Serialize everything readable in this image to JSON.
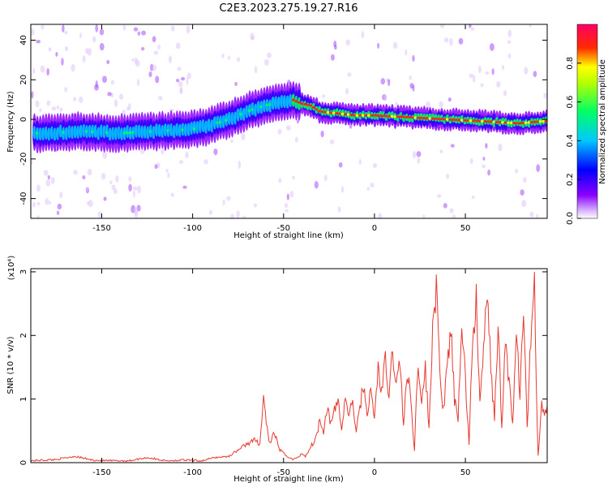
{
  "title": "C2E3.2023.275.19.27.R16",
  "colors": {
    "snr_line": "#e8392f",
    "colormap": [
      "#ffffff",
      "#d9b3ff",
      "#8a00ff",
      "#0000ff",
      "#00c8ff",
      "#00ff66",
      "#ffff00",
      "#ff2a00",
      "#ff0066"
    ]
  },
  "chart_data": [
    {
      "type": "heatmap",
      "name": "spectrogram",
      "xlabel": "Height of straight line (km)",
      "ylabel": "Frequency (Hz)",
      "xlim": [
        -189,
        95
      ],
      "ylim": [
        -50,
        48
      ],
      "x_ticks": [
        -150,
        -100,
        -50,
        0,
        50
      ],
      "y_ticks": [
        -40,
        -20,
        0,
        20,
        40
      ],
      "grid": false,
      "colorbar": {
        "label": "Normalized spectral amplitude",
        "range": [
          0,
          1
        ],
        "ticks": [
          0.0,
          0.2,
          0.4,
          0.6,
          0.8
        ]
      },
      "ridge": {
        "x": [
          -180,
          -160,
          -140,
          -120,
          -100,
          -90,
          -80,
          -70,
          -60,
          -50,
          -45,
          -40,
          -35,
          -30,
          -20,
          -10,
          0,
          20,
          40,
          60,
          80,
          92
        ],
        "frequency": [
          -7,
          -6,
          -7,
          -6,
          -5,
          -3,
          0,
          4,
          7,
          9,
          10,
          8,
          7,
          4,
          3,
          2,
          2,
          1,
          0,
          -1,
          -2,
          -1
        ]
      }
    },
    {
      "type": "line",
      "name": "snr",
      "xlabel": "Height of straight line (km)",
      "ylabel": "SNR (10 * v/v)",
      "multiplier": "(x10⁴)",
      "xlim": [
        -189,
        95
      ],
      "ylim": [
        0,
        3.05
      ],
      "x_ticks": [
        -150,
        -100,
        -50,
        0,
        50
      ],
      "y_ticks": [
        0,
        1,
        2,
        3
      ],
      "grid": false,
      "series": [
        {
          "x": [
            -189,
            -175,
            -165,
            -155,
            -145,
            -135,
            -125,
            -115,
            -105,
            -95,
            -88,
            -80,
            -75,
            -70,
            -66,
            -63,
            -61,
            -58,
            -55,
            -52,
            -48,
            -45,
            -42,
            -40,
            -38,
            -36,
            -34,
            -32,
            -30,
            -28,
            -26,
            -24,
            -22,
            -20,
            -18,
            -16,
            -14,
            -12,
            -10,
            -8,
            -6,
            -4,
            -2,
            0,
            2,
            4,
            6,
            8,
            10,
            12,
            14,
            16,
            18,
            20,
            22,
            24,
            26,
            28,
            30,
            32,
            34,
            36,
            38,
            40,
            42,
            44,
            46,
            48,
            50,
            52,
            54,
            56,
            58,
            60,
            62,
            64,
            66,
            68,
            70,
            72,
            74,
            76,
            78,
            80,
            82,
            84,
            86,
            88,
            89,
            90,
            92,
            94,
            95
          ],
          "y": [
            0.03,
            0.05,
            0.1,
            0.04,
            0.03,
            0.03,
            0.08,
            0.03,
            0.04,
            0.03,
            0.08,
            0.1,
            0.2,
            0.3,
            0.35,
            0.3,
            1.02,
            0.3,
            0.45,
            0.2,
            0.1,
            0.05,
            0.08,
            0.15,
            0.1,
            0.2,
            0.3,
            0.4,
            0.7,
            0.5,
            0.9,
            0.6,
            0.8,
            1.0,
            0.5,
            1.05,
            0.7,
            1.0,
            0.45,
            0.9,
            1.2,
            0.8,
            1.1,
            0.7,
            1.5,
            1.1,
            1.6,
            1.0,
            1.8,
            1.2,
            1.6,
            0.6,
            1.4,
            1.0,
            0.2,
            1.7,
            0.9,
            1.5,
            0.5,
            2.2,
            2.7,
            1.4,
            0.8,
            1.5,
            2.1,
            1.0,
            0.6,
            2.3,
            1.3,
            0.3,
            2.0,
            2.5,
            0.9,
            1.8,
            2.6,
            1.5,
            0.7,
            2.2,
            0.5,
            1.9,
            1.3,
            0.6,
            2.0,
            1.1,
            2.4,
            0.5,
            2.0,
            3.05,
            1.2,
            0.1,
            0.9,
            0.8,
            0.9
          ]
        }
      ]
    }
  ]
}
